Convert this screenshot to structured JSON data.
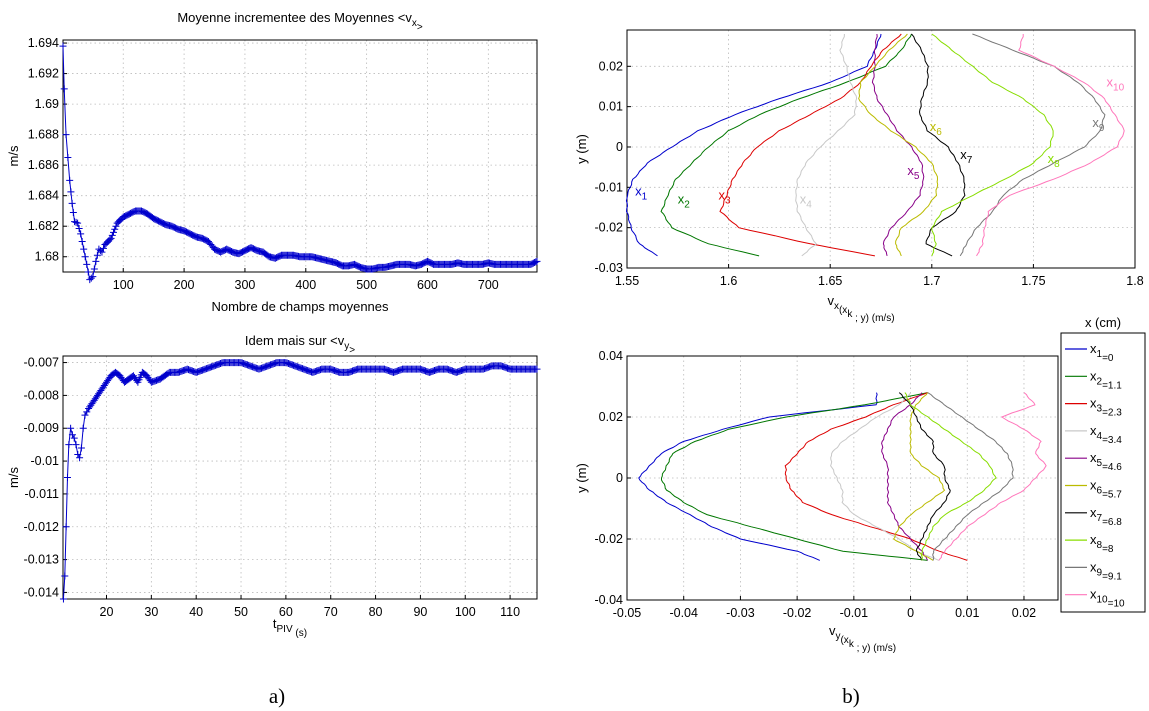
{
  "captions": {
    "a": "a)",
    "b": "b)"
  },
  "chart_data": [
    {
      "type": "line",
      "title": "Moyenne incrementee des Moyennes <v",
      "title_sub": "x",
      "title_end": ">",
      "xlabel": "Nombre de champs moyennes",
      "ylabel": "m/s",
      "xlim": [
        1,
        780
      ],
      "ylim": [
        1.679,
        1.6942
      ],
      "xticks": [
        100,
        200,
        300,
        400,
        500,
        600,
        700
      ],
      "yticks": [
        1.68,
        1.682,
        1.684,
        1.686,
        1.688,
        1.69,
        1.692,
        1.694
      ],
      "ytick_labels": [
        "1.68",
        "1.682",
        "1.684",
        "1.686",
        "1.688",
        "1.69",
        "1.692",
        "1.694"
      ],
      "marker": "+",
      "color": "#0000cc",
      "series": [
        {
          "x": [
            1,
            3,
            6,
            9,
            12,
            16,
            20,
            25,
            30,
            35,
            40,
            45,
            50,
            55,
            60,
            65,
            70,
            80,
            90,
            100,
            110,
            120,
            130,
            140,
            150,
            160,
            170,
            180,
            190,
            200,
            210,
            220,
            230,
            240,
            250,
            260,
            270,
            280,
            290,
            300,
            310,
            320,
            330,
            340,
            350,
            360,
            370,
            380,
            390,
            400,
            410,
            420,
            430,
            440,
            450,
            460,
            470,
            480,
            490,
            500,
            510,
            520,
            530,
            540,
            550,
            560,
            570,
            580,
            590,
            600,
            610,
            620,
            630,
            640,
            650,
            660,
            670,
            680,
            690,
            700,
            710,
            720,
            730,
            740,
            750,
            760,
            770,
            780
          ],
          "y": [
            1.6938,
            1.691,
            1.688,
            1.6865,
            1.685,
            1.6835,
            1.6823,
            1.6822,
            1.6815,
            1.6805,
            1.6795,
            1.6785,
            1.6787,
            1.6797,
            1.6805,
            1.6803,
            1.6808,
            1.6812,
            1.6822,
            1.6826,
            1.6828,
            1.683,
            1.683,
            1.6828,
            1.6825,
            1.6823,
            1.6821,
            1.682,
            1.6818,
            1.6817,
            1.6815,
            1.6813,
            1.6812,
            1.681,
            1.6805,
            1.6803,
            1.6805,
            1.6803,
            1.6802,
            1.6804,
            1.6806,
            1.6804,
            1.6803,
            1.68,
            1.6799,
            1.6801,
            1.6801,
            1.6801,
            1.68,
            1.68,
            1.68,
            1.6799,
            1.6798,
            1.6797,
            1.6796,
            1.6794,
            1.6794,
            1.6795,
            1.6793,
            1.6792,
            1.6792,
            1.6793,
            1.6793,
            1.6794,
            1.6795,
            1.6795,
            1.6795,
            1.6794,
            1.6795,
            1.6797,
            1.6795,
            1.6795,
            1.6795,
            1.6795,
            1.6796,
            1.6795,
            1.6795,
            1.6795,
            1.6795,
            1.6796,
            1.6795,
            1.6795,
            1.6795,
            1.6795,
            1.6795,
            1.6795,
            1.6795,
            1.6797
          ]
        }
      ]
    },
    {
      "type": "line",
      "title": "Idem mais sur  <v",
      "title_sub": "y",
      "title_end": ">",
      "xlabel": "t",
      "xlabel_sub": "PIV",
      "xlabel_end": " (s)",
      "ylabel": "m/s",
      "xlim": [
        10.3,
        116
      ],
      "ylim": [
        -0.0142,
        -0.0068
      ],
      "xticks": [
        20,
        30,
        40,
        50,
        60,
        70,
        80,
        90,
        100,
        110
      ],
      "yticks": [
        -0.007,
        -0.008,
        -0.009,
        -0.01,
        -0.011,
        -0.012,
        -0.013,
        -0.014
      ],
      "ytick_labels": [
        "-0.007",
        "-0.008",
        "-0.009",
        "-0.01",
        "-0.011",
        "-0.012",
        "-0.013",
        "-0.014"
      ],
      "marker": "+",
      "color": "#0000cc",
      "series": [
        {
          "x": [
            10.4,
            10.7,
            11,
            11.3,
            11.6,
            12,
            12.4,
            12.8,
            13.2,
            13.6,
            14,
            14.4,
            14.8,
            15.2,
            15.6,
            16,
            16.5,
            17,
            18,
            19,
            20,
            21,
            22,
            23,
            24,
            25,
            26,
            27,
            28,
            29,
            30,
            32,
            34,
            36,
            38,
            40,
            42,
            44,
            46,
            48,
            50,
            52,
            54,
            56,
            58,
            60,
            62,
            64,
            66,
            68,
            70,
            72,
            74,
            76,
            78,
            80,
            82,
            84,
            86,
            88,
            90,
            92,
            94,
            96,
            98,
            100,
            102,
            104,
            106,
            108,
            110,
            112,
            114,
            116
          ],
          "y": [
            -0.0142,
            -0.0135,
            -0.012,
            -0.0105,
            -0.0095,
            -0.009,
            -0.0092,
            -0.0093,
            -0.0095,
            -0.0098,
            -0.0099,
            -0.0096,
            -0.009,
            -0.0086,
            -0.0085,
            -0.0084,
            -0.0083,
            -0.0082,
            -0.008,
            -0.0078,
            -0.0076,
            -0.0074,
            -0.0073,
            -0.0074,
            -0.0076,
            -0.0075,
            -0.0074,
            -0.0076,
            -0.0073,
            -0.0074,
            -0.0076,
            -0.0075,
            -0.0073,
            -0.0073,
            -0.0072,
            -0.0073,
            -0.0072,
            -0.0071,
            -0.007,
            -0.007,
            -0.007,
            -0.0071,
            -0.0072,
            -0.0071,
            -0.007,
            -0.007,
            -0.0071,
            -0.0072,
            -0.0073,
            -0.0072,
            -0.0072,
            -0.0073,
            -0.0073,
            -0.0072,
            -0.0072,
            -0.0072,
            -0.0072,
            -0.0073,
            -0.0072,
            -0.0072,
            -0.0072,
            -0.0073,
            -0.0072,
            -0.0072,
            -0.0073,
            -0.0072,
            -0.0072,
            -0.0072,
            -0.0071,
            -0.0071,
            -0.0072,
            -0.0072,
            -0.0072,
            -0.0072
          ]
        }
      ]
    },
    {
      "type": "line",
      "xlabel": "v",
      "xlabel_sub": "x",
      "xlabel_mid": "(x",
      "xlabel_sub2": "k",
      "xlabel_end": " ; y) (m/s)",
      "ylabel": "y (m)",
      "xlim": [
        1.55,
        1.8
      ],
      "ylim": [
        -0.03,
        0.029
      ],
      "xticks": [
        1.55,
        1.6,
        1.65,
        1.7,
        1.75,
        1.8
      ],
      "xtick_labels": [
        "1.55",
        "1.6",
        "1.65",
        "1.7",
        "1.75",
        "1.8"
      ],
      "yticks": [
        0.02,
        0.01,
        0,
        -0.01,
        -0.02,
        -0.03
      ],
      "ytick_labels": [
        "0.02",
        "0.01",
        "0",
        "-0.01",
        "-0.02",
        "-0.03"
      ],
      "y": [
        0.028,
        0.024,
        0.02,
        0.016,
        0.012,
        0.008,
        0.004,
        0,
        -0.004,
        -0.008,
        -0.012,
        -0.016,
        -0.02,
        -0.024,
        -0.027
      ],
      "series": [
        {
          "color": "#0000cc",
          "label": "x",
          "label_sub": "1",
          "x": [
            1.675,
            1.672,
            1.668,
            1.65,
            1.625,
            1.603,
            1.585,
            1.572,
            1.56,
            1.553,
            1.55,
            1.55,
            1.552,
            1.556,
            1.565
          ]
        },
        {
          "color": "#007700",
          "label": "x",
          "label_sub": "2",
          "x": [
            1.69,
            1.685,
            1.677,
            1.658,
            1.635,
            1.615,
            1.6,
            1.59,
            1.582,
            1.574,
            1.57,
            1.567,
            1.572,
            1.59,
            1.615
          ]
        },
        {
          "color": "#dd0000",
          "label": "x",
          "label_sub": "3",
          "x": [
            1.685,
            1.676,
            1.67,
            1.665,
            1.655,
            1.64,
            1.625,
            1.614,
            1.607,
            1.602,
            1.599,
            1.596,
            1.605,
            1.64,
            1.672
          ]
        },
        {
          "color": "#c8c8c8",
          "label": "x",
          "label_sub": "4",
          "x": [
            1.657,
            1.655,
            1.658,
            1.66,
            1.663,
            1.662,
            1.654,
            1.645,
            1.638,
            1.634,
            1.633,
            1.634,
            1.638,
            1.643,
            1.636
          ]
        },
        {
          "color": "#880088",
          "label": "x",
          "label_sub": "5",
          "x": [
            1.673,
            1.672,
            1.672,
            1.671,
            1.673,
            1.678,
            1.683,
            1.69,
            1.695,
            1.696,
            1.694,
            1.688,
            1.68,
            1.676,
            1.678
          ]
        },
        {
          "color": "#bbbb00",
          "label": "x",
          "label_sub": "6",
          "x": [
            1.688,
            1.679,
            1.672,
            1.665,
            1.664,
            1.67,
            1.68,
            1.692,
            1.7,
            1.703,
            1.702,
            1.696,
            1.685,
            1.682,
            1.685
          ]
        },
        {
          "color": "#000000",
          "label": "x",
          "label_sub": "7",
          "x": [
            1.69,
            1.695,
            1.698,
            1.698,
            1.695,
            1.694,
            1.698,
            1.708,
            1.713,
            1.716,
            1.716,
            1.712,
            1.7,
            1.697,
            1.71
          ]
        },
        {
          "color": "#88dd00",
          "label": "x",
          "label_sub": "8",
          "x": [
            1.7,
            1.71,
            1.72,
            1.73,
            1.745,
            1.755,
            1.76,
            1.758,
            1.75,
            1.736,
            1.72,
            1.705,
            1.7,
            1.702,
            1.7
          ]
        },
        {
          "color": "#777777",
          "label": "x",
          "label_sub": "9",
          "x": [
            1.72,
            1.74,
            1.76,
            1.772,
            1.78,
            1.785,
            1.783,
            1.775,
            1.76,
            1.745,
            1.735,
            1.73,
            1.722,
            1.717,
            1.714
          ]
        },
        {
          "color": "#ff77bb",
          "label": "x",
          "label_sub": "10",
          "x": [
            1.745,
            1.743,
            1.76,
            1.775,
            1.785,
            1.79,
            1.795,
            1.791,
            1.778,
            1.76,
            1.738,
            1.728,
            1.726,
            1.725,
            1.722
          ]
        }
      ]
    },
    {
      "type": "line",
      "xlabel": "v",
      "xlabel_sub": "y",
      "xlabel_mid": "(x",
      "xlabel_sub2": "k",
      "xlabel_end": " ; y) (m/s)",
      "ylabel": "y (m)",
      "xlim": [
        -0.05,
        0.026
      ],
      "ylim": [
        -0.04,
        0.04
      ],
      "xticks": [
        -0.05,
        -0.04,
        -0.03,
        -0.02,
        -0.01,
        0,
        0.01,
        0.02
      ],
      "xtick_labels": [
        "-0.05",
        "-0.04",
        "-0.03",
        "-0.02",
        "-0.01",
        "0",
        "0.01",
        "0.02"
      ],
      "yticks": [
        0.04,
        0.02,
        0,
        -0.02,
        -0.04
      ],
      "ytick_labels": [
        "0.04",
        "0.02",
        "0",
        "-0.02",
        "-0.04"
      ],
      "y": [
        0.028,
        0.024,
        0.02,
        0.016,
        0.012,
        0.008,
        0.004,
        0,
        -0.004,
        -0.008,
        -0.012,
        -0.016,
        -0.02,
        -0.024,
        -0.027
      ],
      "series": [
        {
          "color": "#0000cc",
          "x": [
            -0.006,
            -0.006,
            -0.025,
            -0.033,
            -0.04,
            -0.044,
            -0.046,
            -0.048,
            -0.046,
            -0.043,
            -0.039,
            -0.035,
            -0.03,
            -0.02,
            -0.016
          ]
        },
        {
          "color": "#007700",
          "x": [
            0.003,
            -0.008,
            -0.022,
            -0.032,
            -0.038,
            -0.042,
            -0.043,
            -0.044,
            -0.043,
            -0.04,
            -0.036,
            -0.028,
            -0.02,
            -0.012,
            0.003
          ]
        },
        {
          "color": "#dd0000",
          "x": [
            0.003,
            -0.003,
            -0.008,
            -0.014,
            -0.018,
            -0.02,
            -0.022,
            -0.022,
            -0.021,
            -0.019,
            -0.014,
            -0.007,
            0.0,
            0.005,
            0.01
          ]
        },
        {
          "color": "#c8c8c8",
          "x": [
            0.0,
            -0.002,
            -0.006,
            -0.009,
            -0.012,
            -0.014,
            -0.014,
            -0.013,
            -0.012,
            -0.012,
            -0.01,
            -0.006,
            -0.002,
            0.001,
            0.005
          ]
        },
        {
          "color": "#880088",
          "x": [
            0.002,
            0.0,
            -0.003,
            -0.004,
            -0.005,
            -0.005,
            -0.004,
            -0.004,
            -0.004,
            -0.004,
            -0.003,
            -0.002,
            0.0,
            0.002,
            0.003
          ]
        },
        {
          "color": "#bbbb00",
          "x": [
            0.003,
            0.001,
            0.0,
            0.0,
            0.0,
            0.0,
            0.002,
            0.005,
            0.006,
            0.003,
            0.0,
            -0.002,
            -0.003,
            0.001,
            0.004
          ]
        },
        {
          "color": "#000000",
          "x": [
            -0.002,
            0.0,
            0.001,
            0.002,
            0.004,
            0.004,
            0.006,
            0.006,
            0.007,
            0.006,
            0.004,
            0.003,
            0.002,
            0.001,
            0.002
          ]
        },
        {
          "color": "#88dd00",
          "x": [
            -0.001,
            0.0,
            0.003,
            0.006,
            0.009,
            0.012,
            0.014,
            0.015,
            0.013,
            0.01,
            0.006,
            0.004,
            0.003,
            0.002,
            0.002
          ]
        },
        {
          "color": "#777777",
          "x": [
            0.003,
            0.006,
            0.009,
            0.012,
            0.015,
            0.017,
            0.018,
            0.018,
            0.016,
            0.013,
            0.01,
            0.008,
            0.006,
            0.004,
            0.004
          ]
        },
        {
          "color": "#ff77bb",
          "x": [
            0.02,
            0.022,
            0.016,
            0.02,
            0.023,
            0.022,
            0.024,
            0.022,
            0.02,
            0.016,
            0.013,
            0.01,
            0.008,
            0.006,
            0.005
          ]
        }
      ],
      "legend": {
        "title": "x (cm)",
        "entries": [
          {
            "sym": "x",
            "sub": "1",
            "val": "=0"
          },
          {
            "sym": "x",
            "sub": "2",
            "val": "=1.1"
          },
          {
            "sym": "x",
            "sub": "3",
            "val": "=2.3"
          },
          {
            "sym": "x",
            "sub": "4",
            "val": "=3.4"
          },
          {
            "sym": "x",
            "sub": "5",
            "val": "=4.6"
          },
          {
            "sym": "x",
            "sub": "6",
            "val": "=5.7"
          },
          {
            "sym": "x",
            "sub": "7",
            "val": "=6.8"
          },
          {
            "sym": "x",
            "sub": "8",
            "val": "=8"
          },
          {
            "sym": "x",
            "sub": "9",
            "val": "=9.1"
          },
          {
            "sym": "x",
            "sub": "10",
            "val": "=10"
          }
        ]
      }
    }
  ]
}
